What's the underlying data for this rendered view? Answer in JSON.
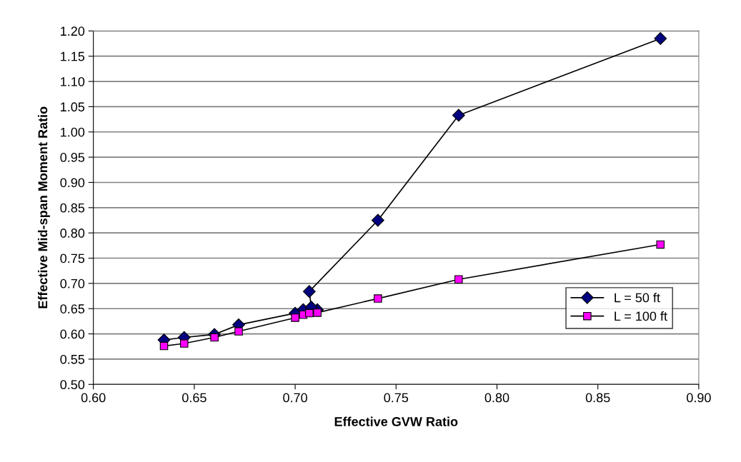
{
  "chart_data": {
    "type": "line",
    "xlabel": "Effective GVW Ratio",
    "ylabel": "Effective Mid-span Moment Ratio",
    "xlim": [
      0.6,
      0.9
    ],
    "xticks": [
      {
        "value": 0.6,
        "label": "0.60"
      },
      {
        "value": 0.65,
        "label": "0.65"
      },
      {
        "value": 0.7,
        "label": "0.70"
      },
      {
        "value": 0.75,
        "label": "0.75"
      },
      {
        "value": 0.8,
        "label": "0.80"
      },
      {
        "value": 0.85,
        "label": "0.85"
      },
      {
        "value": 0.9,
        "label": "0.90"
      }
    ],
    "ylim": [
      0.5,
      1.2
    ],
    "yticks": [
      {
        "value": 0.5,
        "label": "0.50"
      },
      {
        "value": 0.55,
        "label": "0.55"
      },
      {
        "value": 0.6,
        "label": "0.60"
      },
      {
        "value": 0.65,
        "label": "0.65"
      },
      {
        "value": 0.7,
        "label": "0.70"
      },
      {
        "value": 0.75,
        "label": "0.75"
      },
      {
        "value": 0.8,
        "label": "0.80"
      },
      {
        "value": 0.85,
        "label": "0.85"
      },
      {
        "value": 0.9,
        "label": "0.90"
      },
      {
        "value": 0.95,
        "label": "0.95"
      },
      {
        "value": 1.0,
        "label": "1.00"
      },
      {
        "value": 1.05,
        "label": "1.05"
      },
      {
        "value": 1.1,
        "label": "1.10"
      },
      {
        "value": 1.15,
        "label": "1.15"
      },
      {
        "value": 1.2,
        "label": "1.20"
      }
    ],
    "grid": "y",
    "legend": "right",
    "line_style": "solid",
    "series": [
      {
        "name": "L = 50 ft",
        "color": "#000080",
        "marker": "diamond",
        "x": [
          0.635,
          0.645,
          0.66,
          0.672,
          0.7,
          0.704,
          0.711,
          0.708,
          0.707,
          0.741,
          0.781,
          0.881
        ],
        "values": [
          0.588,
          0.593,
          0.599,
          0.618,
          0.641,
          0.648,
          0.648,
          0.653,
          0.684,
          0.825,
          1.033,
          1.185
        ]
      },
      {
        "name": "L = 100 ft",
        "color": "#ff00ff",
        "marker": "square",
        "x": [
          0.635,
          0.645,
          0.66,
          0.672,
          0.7,
          0.704,
          0.707,
          0.711,
          0.741,
          0.781,
          0.881
        ],
        "values": [
          0.576,
          0.581,
          0.593,
          0.605,
          0.632,
          0.638,
          0.641,
          0.642,
          0.67,
          0.708,
          0.777
        ]
      }
    ]
  }
}
